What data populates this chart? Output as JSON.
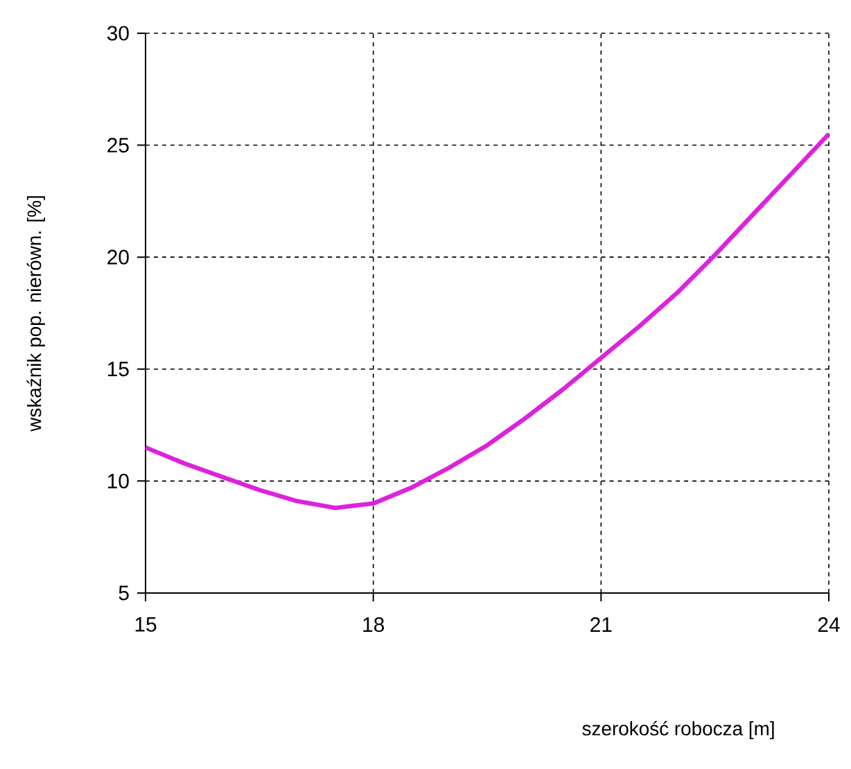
{
  "chart_data": {
    "type": "line",
    "xlabel": "szerokość robocza [m]",
    "ylabel": "wskaźnik pop. nierówn. [%]",
    "xlim": [
      15,
      24
    ],
    "ylim": [
      5,
      30
    ],
    "xticks": [
      15,
      18,
      21,
      24
    ],
    "yticks": [
      5,
      10,
      15,
      20,
      25,
      30
    ],
    "grid": true,
    "line_style": "solid",
    "marker": "none",
    "series": [
      {
        "color": "#dd22dd",
        "x": [
          15,
          15.5,
          16,
          16.5,
          17,
          17.5,
          18,
          18.5,
          19,
          19.5,
          20,
          20.5,
          21,
          21.5,
          22,
          22.5,
          23,
          23.5,
          24
        ],
        "values": [
          11.5,
          10.8,
          10.2,
          9.6,
          9.1,
          8.8,
          9.0,
          9.7,
          10.6,
          11.6,
          12.8,
          14.1,
          15.5,
          16.9,
          18.4,
          20.1,
          21.9,
          23.7,
          25.5
        ]
      }
    ]
  }
}
